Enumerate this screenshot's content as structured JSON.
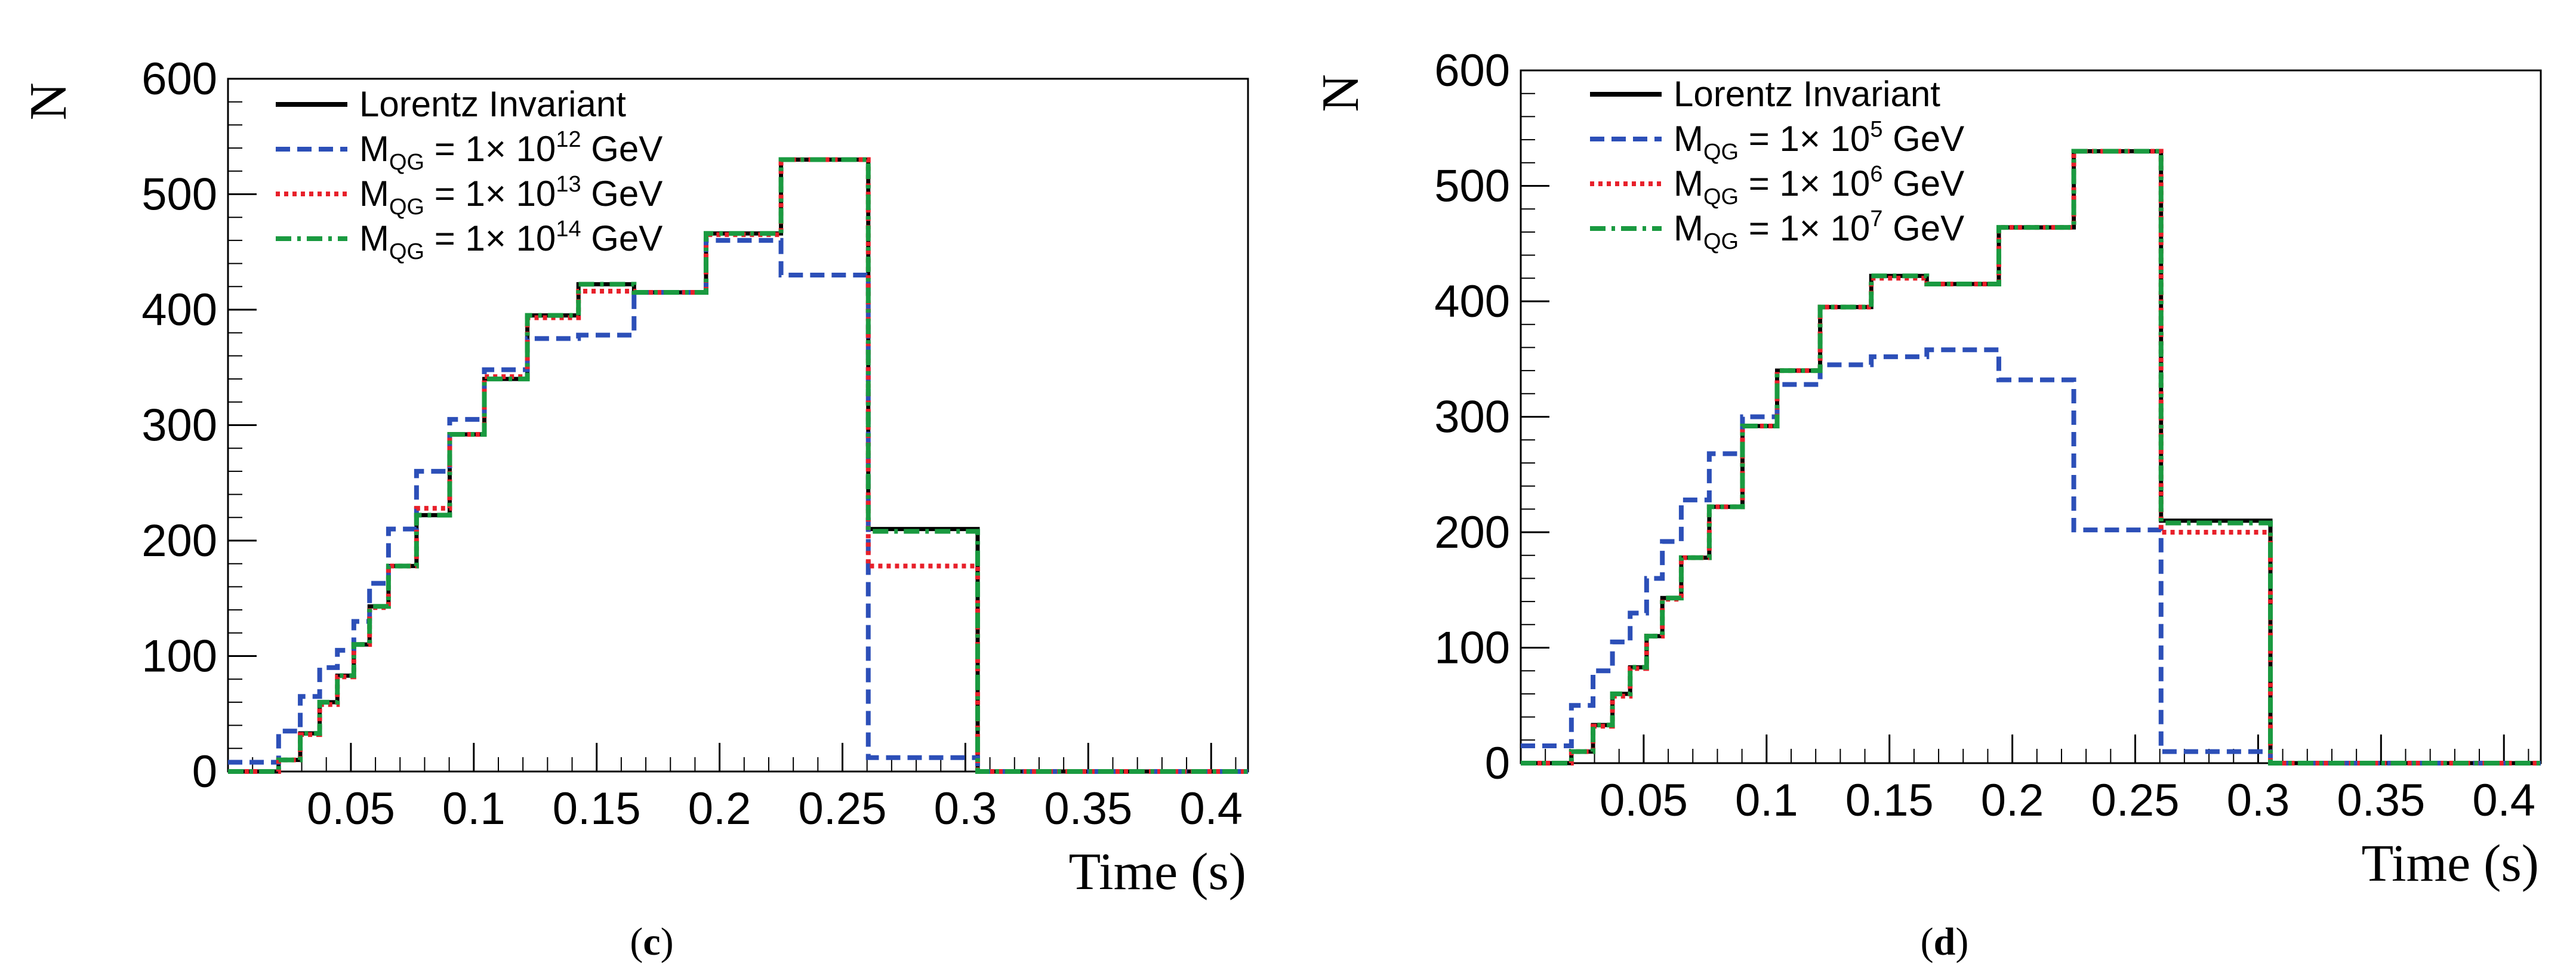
{
  "chart_data": [
    {
      "type": "step",
      "panel": "c",
      "caption": {
        "open": "(",
        "letter": "c",
        "close": ")"
      },
      "xlabel": "Time (s)",
      "ylabel": "N",
      "xlim": [
        0,
        0.415
      ],
      "ylim": [
        0,
        600
      ],
      "xticks": [
        "0.05",
        "0.1",
        "0.15",
        "0.2",
        "0.25",
        "0.3",
        "0.35",
        "0.4"
      ],
      "yticks": [
        "0",
        "100",
        "200",
        "300",
        "400",
        "500",
        "600"
      ],
      "bin_edges": [
        0,
        0.0206,
        0.0294,
        0.0373,
        0.0445,
        0.0512,
        0.0576,
        0.0653,
        0.0767,
        0.0902,
        0.1043,
        0.1218,
        0.1426,
        0.1652,
        0.1945,
        0.225,
        0.2605,
        0.305,
        0.3557,
        0.415
      ],
      "legend_position": "top-left",
      "series": [
        {
          "name": "Lorentz Invariant",
          "legend": {
            "main": "Lorentz Invariant",
            "sub": "",
            "eq": "",
            "sup": "",
            "unit": ""
          },
          "style": "solid",
          "color": "#000000",
          "values": [
            0,
            10,
            33,
            60,
            83,
            110,
            143,
            178,
            222,
            292,
            340,
            395,
            422,
            415,
            466,
            530,
            210,
            0,
            0
          ]
        },
        {
          "name": "M_QG = 1× 10^12 GeV",
          "legend": {
            "main": "M",
            "sub": "QG",
            "eq": " = 1× 10",
            "sup": "12",
            "unit": " GeV"
          },
          "style": "dashed",
          "color": "#2c4fb8",
          "values": [
            8,
            35,
            65,
            90,
            105,
            130,
            163,
            210,
            260,
            305,
            348,
            375,
            378,
            415,
            460,
            430,
            12,
            0,
            0
          ]
        },
        {
          "name": "M_QG = 1× 10^13 GeV",
          "legend": {
            "main": "M",
            "sub": "QG",
            "eq": " = 1× 10",
            "sup": "13",
            "unit": " GeV"
          },
          "style": "dotted",
          "color": "#e8202a",
          "values": [
            0,
            10,
            32,
            58,
            82,
            110,
            142,
            178,
            228,
            292,
            342,
            393,
            416,
            415,
            465,
            530,
            178,
            0,
            0
          ]
        },
        {
          "name": "M_QG = 1× 10^14 GeV",
          "legend": {
            "main": "M",
            "sub": "QG",
            "eq": " = 1× 10",
            "sup": "14",
            "unit": " GeV"
          },
          "style": "dashdot",
          "color": "#1a9a40",
          "values": [
            0,
            10,
            33,
            60,
            83,
            110,
            143,
            178,
            222,
            292,
            340,
            395,
            422,
            415,
            466,
            530,
            208,
            0,
            0
          ]
        }
      ]
    },
    {
      "type": "step",
      "panel": "d",
      "caption": {
        "open": "(",
        "letter": "d",
        "close": ")"
      },
      "xlabel": "Time (s)",
      "ylabel": "N",
      "xlim": [
        0,
        0.415
      ],
      "ylim": [
        0,
        600
      ],
      "xticks": [
        "0.05",
        "0.1",
        "0.15",
        "0.2",
        "0.25",
        "0.3",
        "0.35",
        "0.4"
      ],
      "yticks": [
        "0",
        "100",
        "200",
        "300",
        "400",
        "500",
        "600"
      ],
      "bin_edges": [
        0,
        0.0206,
        0.0294,
        0.0373,
        0.0445,
        0.0512,
        0.0576,
        0.0653,
        0.0767,
        0.0902,
        0.1043,
        0.1218,
        0.1426,
        0.1652,
        0.1945,
        0.225,
        0.2605,
        0.305,
        0.3557,
        0.415
      ],
      "legend_position": "top-left",
      "series": [
        {
          "name": "Lorentz Invariant",
          "legend": {
            "main": "Lorentz Invariant",
            "sub": "",
            "eq": "",
            "sup": "",
            "unit": ""
          },
          "style": "solid",
          "color": "#000000",
          "values": [
            0,
            10,
            33,
            60,
            83,
            110,
            143,
            178,
            222,
            292,
            340,
            395,
            422,
            415,
            464,
            530,
            210,
            0,
            0
          ]
        },
        {
          "name": "M_QG = 1× 10^5 GeV",
          "legend": {
            "main": "M",
            "sub": "QG",
            "eq": " = 1× 10",
            "sup": "5",
            "unit": " GeV"
          },
          "style": "dashed",
          "color": "#2c4fb8",
          "values": [
            15,
            50,
            80,
            105,
            130,
            160,
            192,
            228,
            268,
            300,
            328,
            345,
            352,
            358,
            332,
            202,
            10,
            0,
            0
          ]
        },
        {
          "name": "M_QG = 1× 10^6 GeV",
          "legend": {
            "main": "M",
            "sub": "QG",
            "eq": " = 1× 10",
            "sup": "6",
            "unit": " GeV"
          },
          "style": "dotted",
          "color": "#e8202a",
          "values": [
            0,
            10,
            32,
            58,
            82,
            110,
            142,
            178,
            222,
            292,
            340,
            395,
            420,
            415,
            464,
            530,
            200,
            0,
            0
          ]
        },
        {
          "name": "M_QG = 1× 10^7 GeV",
          "legend": {
            "main": "M",
            "sub": "QG",
            "eq": " = 1× 10",
            "sup": "7",
            "unit": " GeV"
          },
          "style": "dashdot",
          "color": "#1a9a40",
          "values": [
            0,
            10,
            33,
            60,
            83,
            110,
            143,
            178,
            222,
            292,
            340,
            395,
            422,
            415,
            464,
            530,
            208,
            0,
            0
          ]
        }
      ]
    }
  ]
}
